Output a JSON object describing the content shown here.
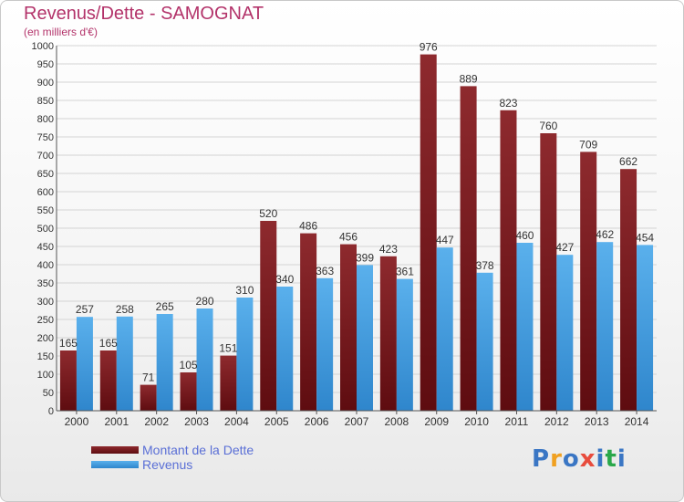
{
  "page": {
    "title": "Revenus/Dette - SAMOGNAT",
    "subtitle": "(en milliers d'€)"
  },
  "logo": {
    "text": "Proxiti",
    "letter_colors": [
      "#3a76c4",
      "#f0a020",
      "#3a76c4",
      "#e84c3d",
      "#3a76c4",
      "#2aa84a",
      "#3a76c4"
    ]
  },
  "chart_data": {
    "type": "bar",
    "title": "Revenus/Dette - SAMOGNAT",
    "subtitle": "(en milliers d'€)",
    "categories": [
      "2000",
      "2001",
      "2002",
      "2003",
      "2004",
      "2005",
      "2006",
      "2007",
      "2008",
      "2009",
      "2010",
      "2011",
      "2012",
      "2013",
      "2014"
    ],
    "series": [
      {
        "name": "Montant de la Dette",
        "color": "#7a1a1e",
        "values": [
          165,
          165,
          71,
          105,
          151,
          520,
          486,
          456,
          423,
          976,
          889,
          823,
          760,
          709,
          662
        ]
      },
      {
        "name": "Revenus",
        "color": "#4aa3e6",
        "values": [
          257,
          258,
          265,
          280,
          310,
          340,
          363,
          399,
          361,
          447,
          378,
          460,
          427,
          462,
          454
        ]
      }
    ],
    "y_ticks": [
      "0",
      "50",
      "100",
      "150",
      "200",
      "250",
      "300",
      "350",
      "400",
      "450",
      "500",
      "550",
      "600",
      "650",
      "700",
      "750",
      "800",
      "850",
      "900",
      "950",
      "1000"
    ],
    "ylim": [
      0,
      1000
    ],
    "grid": true,
    "legend_position": "bottom-left"
  }
}
